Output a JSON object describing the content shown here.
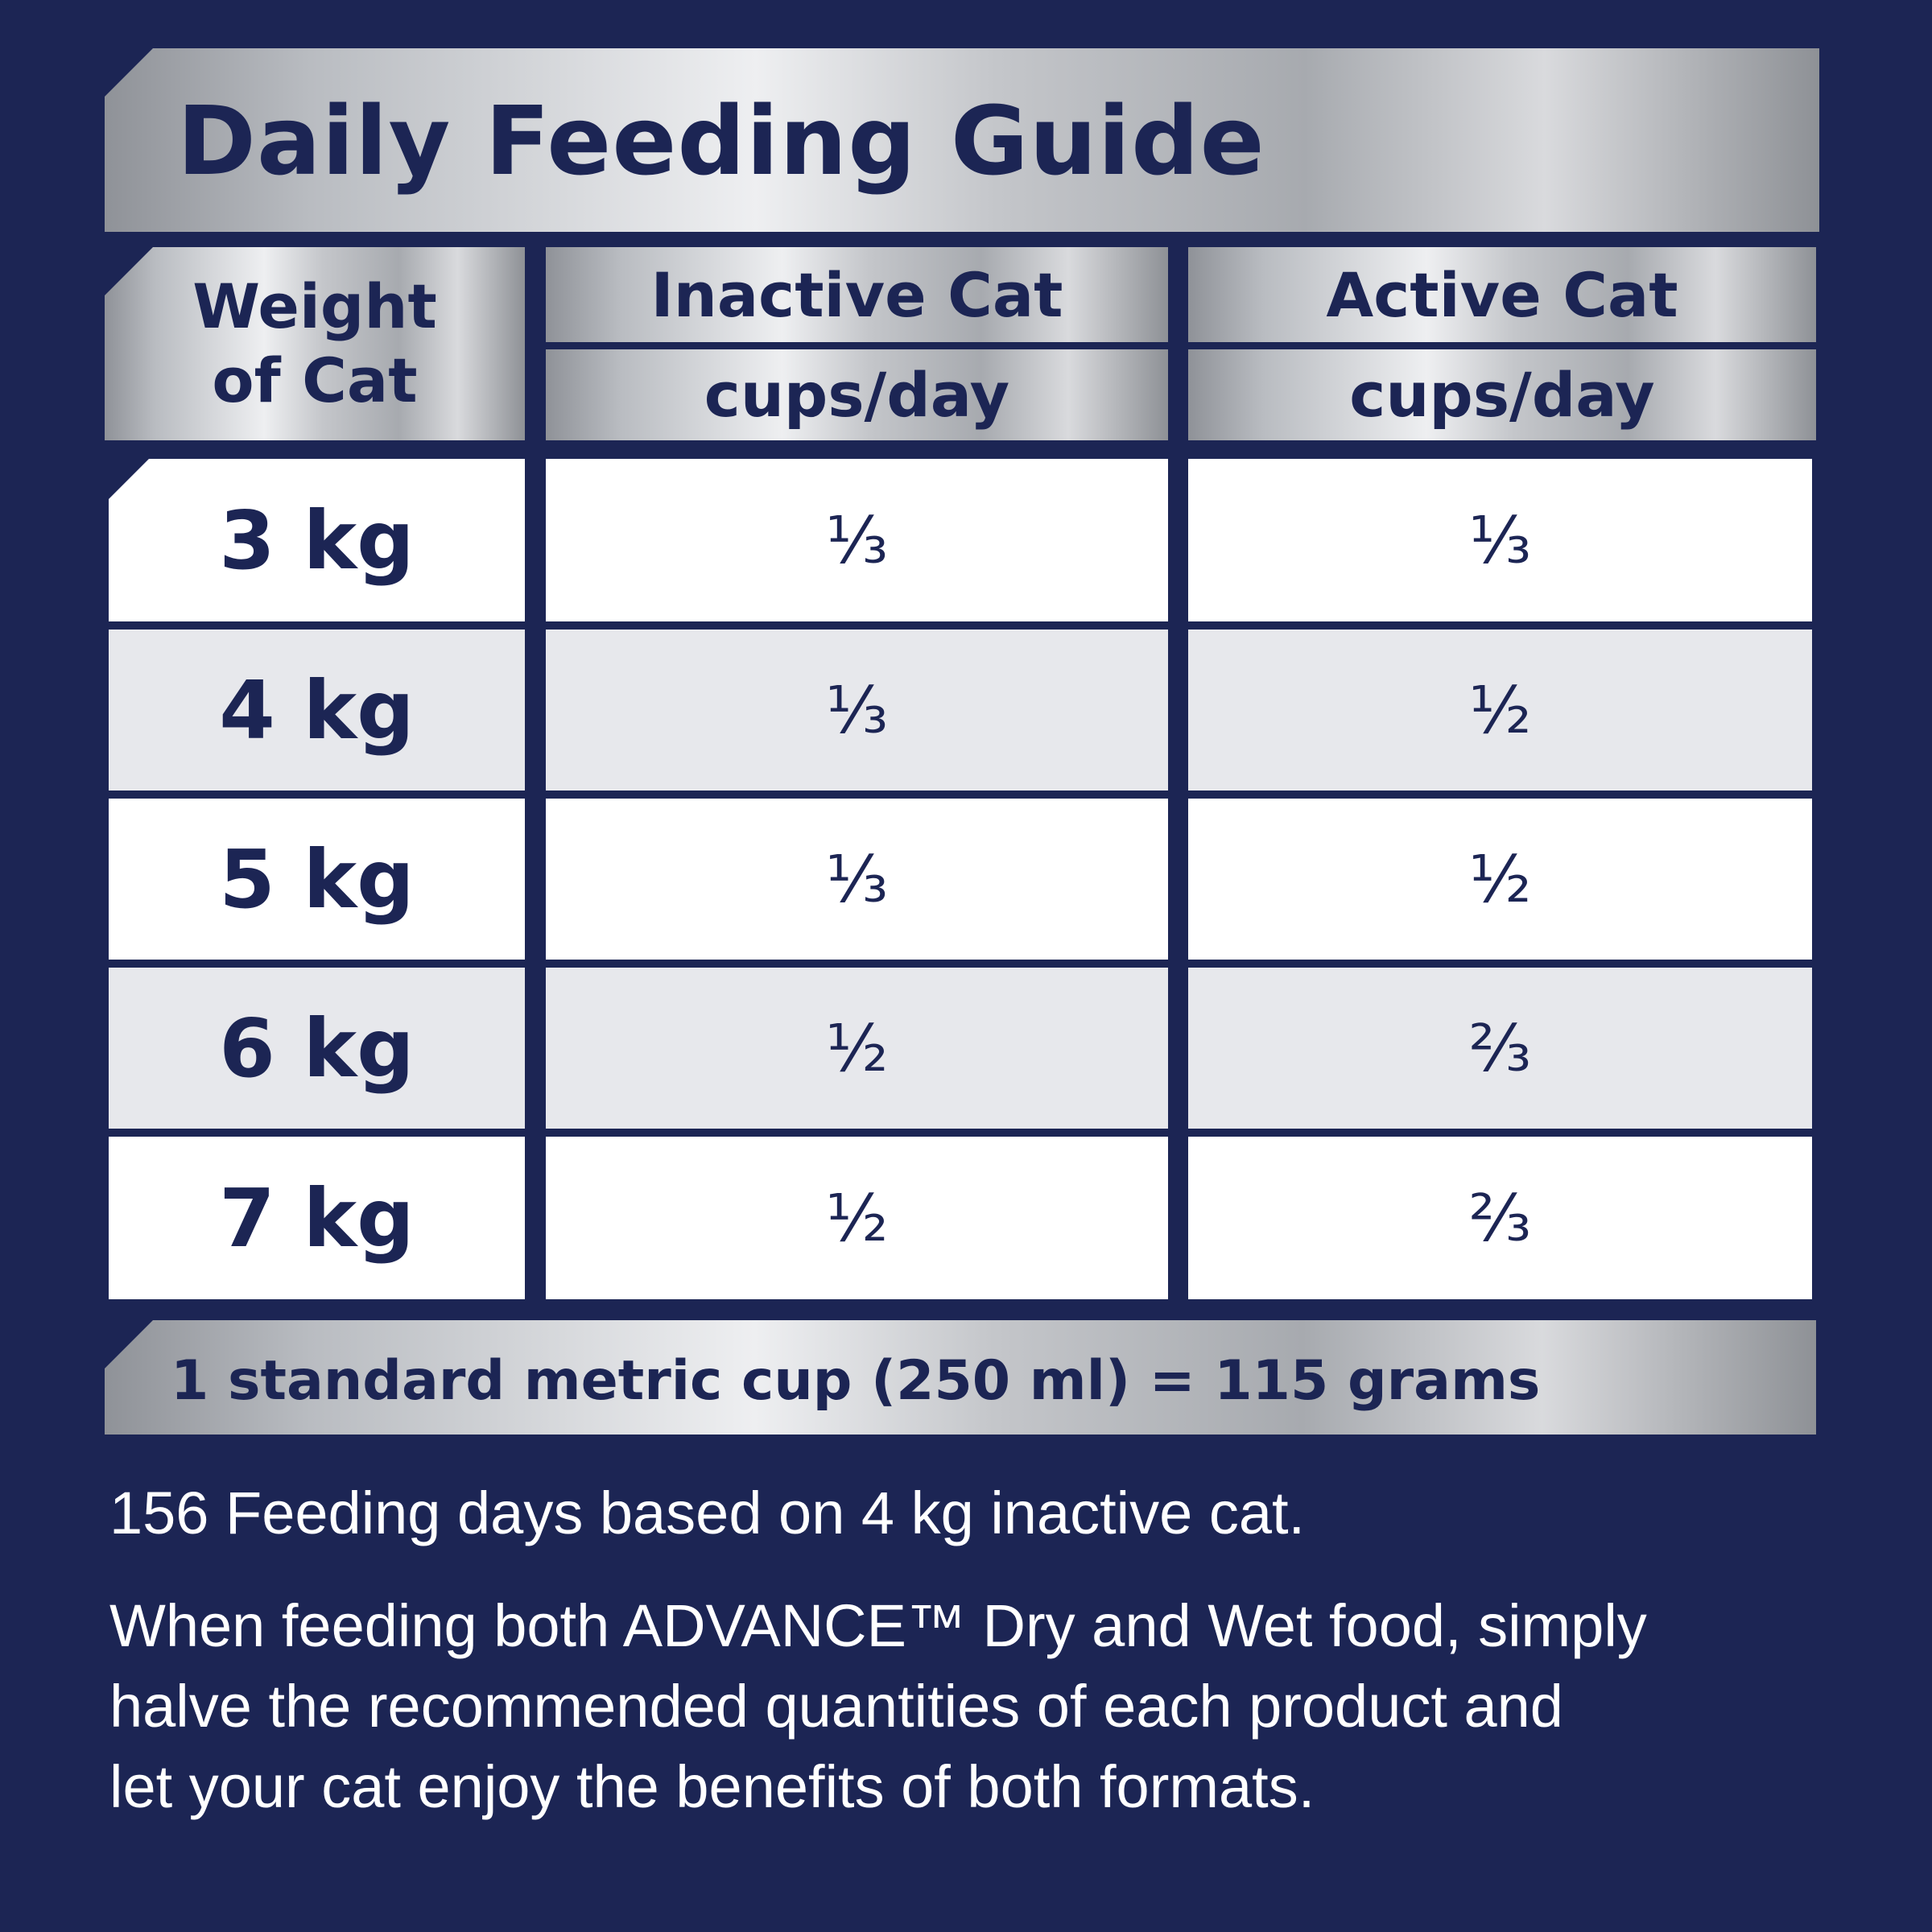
{
  "title": "Daily Feeding Guide",
  "headers": {
    "weight_line1": "Weight",
    "weight_line2": "of Cat",
    "inactive": "Inactive Cat",
    "active": "Active Cat",
    "unit_inactive": "cups/day",
    "unit_active": "cups/day"
  },
  "rows": [
    {
      "weight": "3 kg",
      "inactive": "⅓",
      "active": "⅓"
    },
    {
      "weight": "4 kg",
      "inactive": "⅓",
      "active": "½"
    },
    {
      "weight": "5 kg",
      "inactive": "⅓",
      "active": "½"
    },
    {
      "weight": "6 kg",
      "inactive": "½",
      "active": "⅔"
    },
    {
      "weight": "7 kg",
      "inactive": "½",
      "active": "⅔"
    }
  ],
  "footer": "1 standard metric cup (250 ml) = 115 grams",
  "notes": {
    "feeding_days": "156 Feeding days based on 4 kg inactive cat.",
    "mixed_feeding_line1": "When feeding both ADVANCE™ Dry and Wet food, simply",
    "mixed_feeding_line2": "halve the recommended quantities of each product and",
    "mixed_feeding_line3": "let your cat enjoy the benefits of both formats."
  },
  "colors": {
    "background": "#1c2554",
    "text_dark": "#1c2554",
    "row_white": "#ffffff",
    "row_light": "#e7e8ec"
  }
}
